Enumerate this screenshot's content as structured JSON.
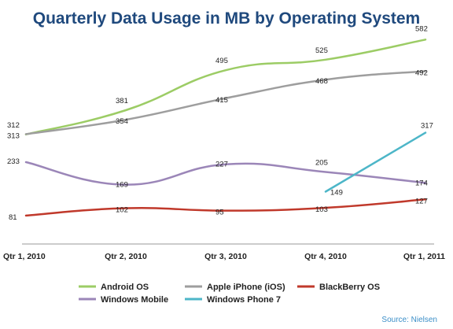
{
  "chart_data": {
    "type": "line",
    "title": "Quarterly Data Usage in MB by Operating System",
    "source": "Source: Nielsen",
    "categories": [
      "Qtr 1, 2010",
      "Qtr 2, 2010",
      "Qtr 3, 2010",
      "Qtr 4, 2010",
      "Qtr 1, 2011"
    ],
    "ylim": [
      0,
      650
    ],
    "grid": false,
    "legend_position": "bottom",
    "series": [
      {
        "name": "Android OS",
        "color": "#9ccc65",
        "values": [
          312,
          381,
          495,
          525,
          582
        ]
      },
      {
        "name": "Apple iPhone (iOS)",
        "color": "#9e9e9e",
        "values": [
          313,
          354,
          415,
          468,
          492
        ]
      },
      {
        "name": "BlackBerry OS",
        "color": "#c0392b",
        "values": [
          81,
          102,
          95,
          103,
          127
        ]
      },
      {
        "name": "Windows Mobile",
        "color": "#9b86b8",
        "values": [
          233,
          169,
          227,
          205,
          174
        ]
      },
      {
        "name": "Windows Phone 7",
        "color": "#4db6c8",
        "values": [
          null,
          null,
          null,
          149,
          317
        ]
      }
    ]
  }
}
